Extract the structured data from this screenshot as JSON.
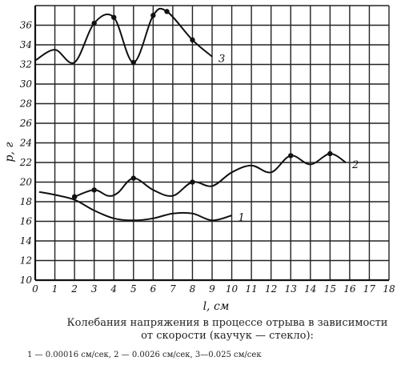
{
  "chart_data": {
    "type": "line",
    "xlabel": "l, см",
    "ylabel": "p, г",
    "xlim": [
      0,
      18
    ],
    "ylim": [
      10,
      38
    ],
    "x_ticks": [
      0,
      1,
      2,
      3,
      4,
      5,
      6,
      7,
      8,
      9,
      10,
      11,
      12,
      13,
      14,
      15,
      16,
      17,
      18
    ],
    "y_ticks": [
      10,
      12,
      14,
      16,
      18,
      20,
      22,
      24,
      26,
      28,
      30,
      32,
      34,
      36
    ],
    "grid": true,
    "series": [
      {
        "name": "1",
        "curve": [
          [
            0.2,
            19.0
          ],
          [
            1.0,
            18.7
          ],
          [
            2.0,
            18.2
          ],
          [
            3.0,
            17.1
          ],
          [
            4.0,
            16.3
          ],
          [
            5.0,
            16.1
          ],
          [
            6.0,
            16.3
          ],
          [
            7.0,
            16.8
          ],
          [
            8.0,
            16.8
          ],
          [
            9.0,
            16.1
          ],
          [
            10.0,
            16.6
          ]
        ],
        "markers": [
          [
            2.0,
            18.5
          ]
        ]
      },
      {
        "name": "2",
        "curve": [
          [
            2.0,
            18.5
          ],
          [
            3.0,
            19.2
          ],
          [
            3.7,
            18.6
          ],
          [
            4.2,
            18.9
          ],
          [
            5.0,
            20.4
          ],
          [
            6.0,
            19.2
          ],
          [
            7.0,
            18.6
          ],
          [
            8.0,
            20.0
          ],
          [
            9.0,
            19.6
          ],
          [
            10.0,
            21.0
          ],
          [
            11.0,
            21.7
          ],
          [
            12.0,
            21.0
          ],
          [
            13.0,
            22.7
          ],
          [
            14.0,
            21.8
          ],
          [
            15.0,
            22.9
          ],
          [
            15.8,
            22.0
          ]
        ],
        "markers": [
          [
            2.0,
            18.5
          ],
          [
            3.0,
            19.2
          ],
          [
            5.0,
            20.4
          ],
          [
            8.0,
            20.0
          ],
          [
            13.0,
            22.7
          ],
          [
            15.0,
            22.9
          ]
        ]
      },
      {
        "name": "3",
        "curve": [
          [
            0.0,
            32.4
          ],
          [
            1.0,
            33.5
          ],
          [
            2.0,
            32.2
          ],
          [
            3.0,
            36.2
          ],
          [
            4.0,
            36.8
          ],
          [
            5.0,
            32.2
          ],
          [
            6.0,
            37.0
          ],
          [
            6.7,
            37.4
          ],
          [
            8.0,
            34.5
          ],
          [
            9.0,
            32.8
          ]
        ],
        "markers": [
          [
            3.0,
            36.2
          ],
          [
            4.0,
            36.8
          ],
          [
            5.0,
            32.2
          ],
          [
            6.0,
            37.0
          ],
          [
            6.7,
            37.4
          ],
          [
            8.0,
            34.5
          ]
        ]
      }
    ]
  },
  "caption": {
    "line1": "Колебания напряжения в процессе отрыва в зависимости от скорости (каучук — стекло):",
    "line2": "1 — 0.00016 см/сек, 2 — 0.0026 см/сек, 3—0.025 см/сек"
  }
}
